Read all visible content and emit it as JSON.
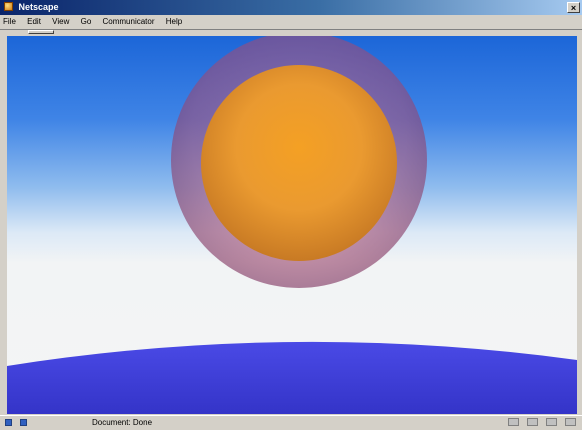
{
  "window": {
    "title": "Netscape",
    "close_label": "×"
  },
  "menu": {
    "items": [
      "File",
      "Edit",
      "View",
      "Go",
      "Communicator",
      "Help"
    ]
  },
  "status": {
    "text": "Document: Done"
  },
  "scene": {
    "sky_top_color": "#1c66d8",
    "sky_bottom_color": "#f4f5f5",
    "outer_sphere_color": "#b05078",
    "inner_sphere_color": "#f0a028",
    "ground_color": "#4848e0"
  }
}
